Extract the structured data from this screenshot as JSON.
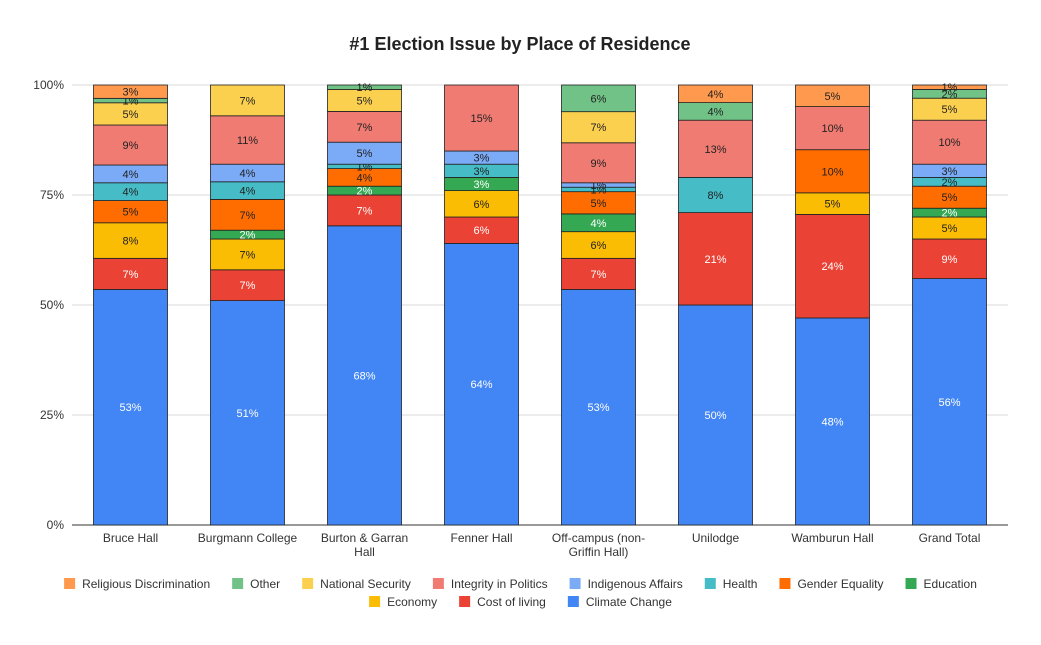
{
  "chart_data": {
    "type": "bar",
    "stacked": true,
    "title": "#1 Election Issue by Place of Residence",
    "xlabel": "",
    "ylabel": "",
    "ylim": [
      0,
      100
    ],
    "y_ticks": [
      "0%",
      "25%",
      "50%",
      "75%",
      "100%"
    ],
    "grid": true,
    "legend_position": "bottom",
    "categories": [
      "Bruce Hall",
      "Burgmann College",
      "Burton & Garran Hall",
      "Fenner Hall",
      "Off-campus (non-Griffin Hall)",
      "Unilodge",
      "Wamburun Hall",
      "Grand Total"
    ],
    "category_labels": [
      [
        "Bruce Hall"
      ],
      [
        "Burgmann College"
      ],
      [
        "Burton & Garran",
        "Hall"
      ],
      [
        "Fenner Hall"
      ],
      [
        "Off-campus (non-",
        "Griffin Hall)"
      ],
      [
        "Unilodge"
      ],
      [
        "Wamburun Hall"
      ],
      [
        "Grand Total"
      ]
    ],
    "series": [
      {
        "name": "Climate Change",
        "color": "#4285f4",
        "values": [
          53,
          51,
          68,
          64,
          53,
          50,
          48,
          56
        ]
      },
      {
        "name": "Cost of living",
        "color": "#ea4335",
        "values": [
          7,
          7,
          7,
          6,
          7,
          21,
          24,
          9
        ]
      },
      {
        "name": "Economy",
        "color": "#fbbc04",
        "values": [
          8,
          7,
          0,
          6,
          6,
          0,
          5,
          5
        ]
      },
      {
        "name": "Education",
        "color": "#34a853",
        "values": [
          0,
          2,
          2,
          3,
          4,
          0,
          0,
          2
        ]
      },
      {
        "name": "Gender Equality",
        "color": "#ff6d01",
        "values": [
          5,
          7,
          4,
          0,
          5,
          0,
          10,
          5
        ]
      },
      {
        "name": "Health",
        "color": "#46bdc6",
        "values": [
          4,
          4,
          1,
          3,
          1,
          8,
          0,
          2
        ]
      },
      {
        "name": "Indigenous Affairs",
        "color": "#7baaf7",
        "values": [
          4,
          4,
          5,
          3,
          1,
          0,
          0,
          3
        ]
      },
      {
        "name": "Integrity in Politics",
        "color": "#f07b72",
        "values": [
          9,
          11,
          7,
          15,
          9,
          13,
          10,
          10
        ]
      },
      {
        "name": "National Security",
        "color": "#fcd04f",
        "values": [
          5,
          7,
          5,
          0,
          7,
          0,
          0,
          5
        ]
      },
      {
        "name": "Other",
        "color": "#71c287",
        "values": [
          1,
          0,
          1,
          0,
          6,
          4,
          0,
          2
        ]
      },
      {
        "name": "Religious Discrimination",
        "color": "#ff994d",
        "values": [
          3,
          0,
          0,
          0,
          0,
          4,
          5,
          1
        ]
      }
    ],
    "legend_order": [
      "Religious Discrimination",
      "Other",
      "National Security",
      "Integrity in Politics",
      "Indigenous Affairs",
      "Health",
      "Gender Equality",
      "Education",
      "Economy",
      "Cost of living",
      "Climate Change"
    ]
  }
}
